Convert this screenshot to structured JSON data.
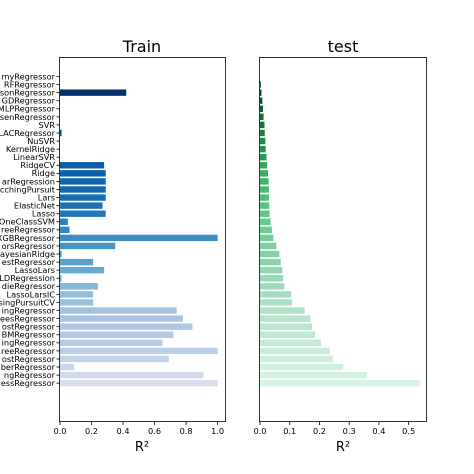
{
  "chart_data": [
    {
      "type": "bar",
      "orientation": "horizontal",
      "title": "Train",
      "xlabel": "R²",
      "xlim": [
        0,
        1.05
      ],
      "xticks": [
        "0.0",
        "0.2",
        "0.4",
        "0.6",
        "0.8",
        "1.0"
      ],
      "grid": false,
      "categories": [
        "DummyRegressor",
        "RFRegressor",
        "PoissonRegressor",
        "SGDRegressor",
        "MLPRegressor",
        "TweedieRegressor",
        "SVR",
        "LassoLarsIC",
        "NuSVR",
        "KernelRidge",
        "LinearSVR",
        "RidgeCV",
        "Ridge",
        "LinearRegression",
        "OrthogonalMatchingPursuit",
        "Lars",
        "ElasticNet",
        "Lasso",
        "OneClassSVM",
        "ExtraTreeRegressor",
        "XGBRegressor",
        "KNeighborsRegressor",
        "BayesianRidge",
        "HistGradientBoostingRegressor",
        "LassoLars",
        "ARDRegression",
        "RandomForestRegressor",
        "LassoLarsIC",
        "OrthogonalMatchingPursuitCV",
        "GradientBoostingRegressor",
        "ExtraTreesRegressor",
        "CatBoostRegressor",
        "LGBMRegressor",
        "BaggingRegressor",
        "DecisionTreeRegressor",
        "AdaBoostRegressor",
        "HuberRegressor",
        "PassiveAggressiveRegressor",
        "TheilSenRegressor"
      ],
      "visible_labels": [
        "myRegressor",
        "RFRegressor",
        "sonRegressor",
        "GDRegressor",
        "MLPRegressor",
        "senRegressor",
        "SVR",
        "LACRegressor",
        "NuSVR",
        "KernelRidge",
        "LinearSVR",
        "RidgeCV",
        "Ridge",
        "arRegression",
        "cchingPursuit",
        "Lars",
        "ElasticNet",
        "Lasso",
        "OneClassSVM",
        "reeRegressor",
        "XGBRegressor",
        "orsRegressor",
        "ayesianRidge",
        "estRegressor",
        "LassoLars",
        "LDRegression",
        "dieRegressor",
        "LassoLarsIC",
        "singPursuitCV",
        "ingRegressor",
        "reesRegressor",
        "ostRegressor",
        "BMRegressor",
        "ingRegressor",
        "reeRegressor",
        "ostRegressor",
        "berRegressor",
        "ngRegressor",
        "essRegressor"
      ],
      "values": [
        0.0,
        0.0,
        0.42,
        0.0,
        0.0,
        0.0,
        0.0,
        0.01,
        0.0,
        0.0,
        0.0,
        0.28,
        0.29,
        0.29,
        0.29,
        0.29,
        0.27,
        0.29,
        0.05,
        0.06,
        1.0,
        0.35,
        0.01,
        0.21,
        0.28,
        0.01,
        0.24,
        0.21,
        0.21,
        0.74,
        0.78,
        0.84,
        0.72,
        0.65,
        1.0,
        0.69,
        0.09,
        0.91,
        1.0
      ],
      "colors": [
        "#08306b",
        "#08306b",
        "#08306b",
        "#08306b",
        "#08306b",
        "#08306b",
        "#08306b",
        "#08519c",
        "#08519c",
        "#08519c",
        "#08519c",
        "#0b5ea8",
        "#0b5ea8",
        "#0e65ae",
        "#1268b0",
        "#176db3",
        "#1c72b6",
        "#2277b9",
        "#2c7fbc",
        "#3484c0",
        "#3d8dc4",
        "#4695c8",
        "#4f9bcb",
        "#58a2cf",
        "#64aad2",
        "#70b1d4",
        "#7fb8d8",
        "#8dbfdb",
        "#98c3dd",
        "#a1c2e0",
        "#a8c4e2",
        "#adc6e3",
        "#b2c8e4",
        "#b6cbe6",
        "#bccfe8",
        "#c3d3ea",
        "#cad7ec",
        "#d1dbed",
        "#d8dfef"
      ]
    },
    {
      "type": "bar",
      "orientation": "horizontal",
      "title": "test",
      "xlabel": "R²",
      "xlim": [
        0,
        0.56
      ],
      "xticks": [
        "0.0",
        "0.1",
        "0.2",
        "0.3",
        "0.4",
        "0.5"
      ],
      "grid": false,
      "values": [
        0.0,
        0.002,
        0.005,
        0.008,
        0.01,
        0.012,
        0.015,
        0.016,
        0.018,
        0.019,
        0.022,
        0.024,
        0.027,
        0.029,
        0.03,
        0.03,
        0.031,
        0.032,
        0.036,
        0.04,
        0.045,
        0.055,
        0.065,
        0.07,
        0.075,
        0.078,
        0.082,
        0.105,
        0.108,
        0.15,
        0.17,
        0.175,
        0.185,
        0.205,
        0.235,
        0.245,
        0.28,
        0.36,
        0.54
      ],
      "colors": [
        "#00441b",
        "#00491f",
        "#004e22",
        "#055a29",
        "#0a6330",
        "#0f6d36",
        "#13763c",
        "#198042",
        "#1f8948",
        "#24924e",
        "#2a9b54",
        "#35a65d",
        "#3dad66",
        "#45b36e",
        "#4cb876",
        "#53be7e",
        "#5ac286",
        "#61c58c",
        "#67c991",
        "#6ecc97",
        "#74ce9c",
        "#7bd1a2",
        "#82d3a7",
        "#88d5ac",
        "#8fd8b1",
        "#95dab6",
        "#9cdcbb",
        "#a2dfc0",
        "#a8e1c4",
        "#aee3c8",
        "#b3e5cb",
        "#b8e7cf",
        "#bde9d2",
        "#c2ebd6",
        "#c7edd9",
        "#cbefdd",
        "#cff1e0",
        "#d3f2e3",
        "#d7f4e6"
      ]
    }
  ]
}
